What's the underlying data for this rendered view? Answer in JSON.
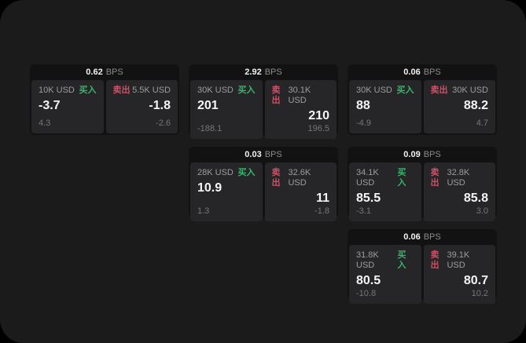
{
  "labels": {
    "bps_unit": "BPS",
    "buy": "买入",
    "sell": "卖出"
  },
  "colors": {
    "page_bg": "#1b1b1c",
    "card_bg": "#121213",
    "panel_bg": "#262628",
    "buy_green": "#38b46c",
    "sell_red": "#d04f66"
  },
  "cards": [
    {
      "bps": "0.62",
      "buy": {
        "amount": "10K USD",
        "price": "-3.7",
        "delta": "4.3"
      },
      "sell": {
        "amount": "5.5K USD",
        "price": "-1.8",
        "delta": "-2.6"
      }
    },
    {
      "bps": "2.92",
      "buy": {
        "amount": "30K USD",
        "price": "201",
        "delta": "-188.1"
      },
      "sell": {
        "amount": "30.1K USD",
        "price": "210",
        "delta": "196.5"
      }
    },
    {
      "bps": "0.06",
      "buy": {
        "amount": "30K USD",
        "price": "88",
        "delta": "-4.9"
      },
      "sell": {
        "amount": "30K USD",
        "price": "88.2",
        "delta": "4.7"
      }
    },
    {
      "bps": "0.03",
      "buy": {
        "amount": "28K USD",
        "price": "10.9",
        "delta": "1.3"
      },
      "sell": {
        "amount": "32.6K USD",
        "price": "11",
        "delta": "-1.8"
      }
    },
    {
      "bps": "0.09",
      "buy": {
        "amount": "34.1K USD",
        "price": "85.5",
        "delta": "-3.1"
      },
      "sell": {
        "amount": "32.8K USD",
        "price": "85.8",
        "delta": "3.0"
      }
    },
    {
      "bps": "0.06",
      "buy": {
        "amount": "31.8K USD",
        "price": "80.5",
        "delta": "-10.8"
      },
      "sell": {
        "amount": "39.1K USD",
        "price": "80.7",
        "delta": "10.2"
      }
    }
  ]
}
